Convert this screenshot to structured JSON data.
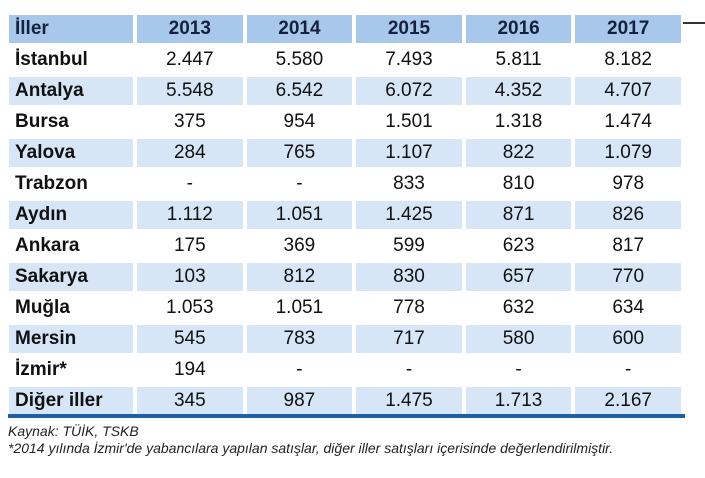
{
  "columns": [
    "İller",
    "2013",
    "2014",
    "2015",
    "2016",
    "2017"
  ],
  "rows": [
    {
      "name": "İstanbul",
      "values": [
        "2.447",
        "5.580",
        "7.493",
        "5.811",
        "8.182"
      ]
    },
    {
      "name": "Antalya",
      "values": [
        "5.548",
        "6.542",
        "6.072",
        "4.352",
        "4.707"
      ]
    },
    {
      "name": "Bursa",
      "values": [
        "375",
        "954",
        "1.501",
        "1.318",
        "1.474"
      ]
    },
    {
      "name": "Yalova",
      "values": [
        "284",
        "765",
        "1.107",
        "822",
        "1.079"
      ]
    },
    {
      "name": "Trabzon",
      "values": [
        "-",
        "-",
        "833",
        "810",
        "978"
      ]
    },
    {
      "name": "Aydın",
      "values": [
        "1.112",
        "1.051",
        "1.425",
        "871",
        "826"
      ]
    },
    {
      "name": "Ankara",
      "values": [
        "175",
        "369",
        "599",
        "623",
        "817"
      ]
    },
    {
      "name": "Sakarya",
      "values": [
        "103",
        "812",
        "830",
        "657",
        "770"
      ]
    },
    {
      "name": "Muğla",
      "values": [
        "1.053",
        "1.051",
        "778",
        "632",
        "634"
      ]
    },
    {
      "name": "Mersin",
      "values": [
        "545",
        "783",
        "717",
        "580",
        "600"
      ]
    },
    {
      "name": "İzmir*",
      "values": [
        "194",
        "-",
        "-",
        "-",
        "-"
      ]
    },
    {
      "name": "Diğer iller",
      "values": [
        "345",
        "987",
        "1.475",
        "1.713",
        "2.167"
      ]
    }
  ],
  "source": "Kaynak: TÜİK, TSKB",
  "footnote": "*2014 yılında İzmir'de yabancılara yapılan satışlar, diğer iller satışları içerisinde değerlendirilmiştir.",
  "colors": {
    "header": "#a8c8eb",
    "shaded_row": "#d6e6f7",
    "rule": "#1f5fa8",
    "title": "#d9262b"
  }
}
